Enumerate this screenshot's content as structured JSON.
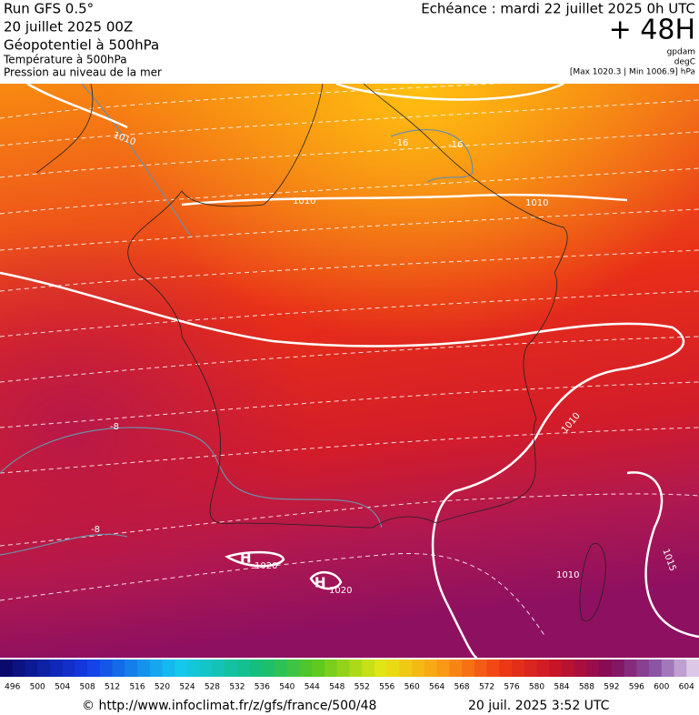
{
  "header": {
    "run": "Run GFS 0.5°",
    "date": "20 juillet 2025 00Z",
    "field1": "Géopotentiel à 500hPa",
    "field2": "Température à 500hPa",
    "field3": "Pression au niveau de la mer",
    "forecast": "Echéance : mardi 22 juillet 2025 0h UTC",
    "lead": "+ 48H",
    "unit1": "gpdam",
    "unit2": "degC",
    "range": "[Max 1020.3 | Min 1006.9] hPa"
  },
  "map": {
    "labels": [
      "1010",
      "1010",
      "1010",
      "-16",
      "-16",
      "-8",
      "-8",
      "H",
      "1020",
      "H",
      "1020",
      "1010",
      "1010",
      "1015"
    ]
  },
  "colorbar": {
    "labels": [
      496,
      500,
      504,
      508,
      512,
      516,
      520,
      524,
      528,
      532,
      536,
      540,
      544,
      548,
      552,
      556,
      560,
      564,
      568,
      572,
      576,
      580,
      584,
      588,
      592,
      596,
      600,
      604
    ]
  },
  "footer": {
    "source": "© http://www.infoclimat.fr/z/gfs/france/500/48",
    "time": "20 juil. 2025  3:52 UTC"
  }
}
